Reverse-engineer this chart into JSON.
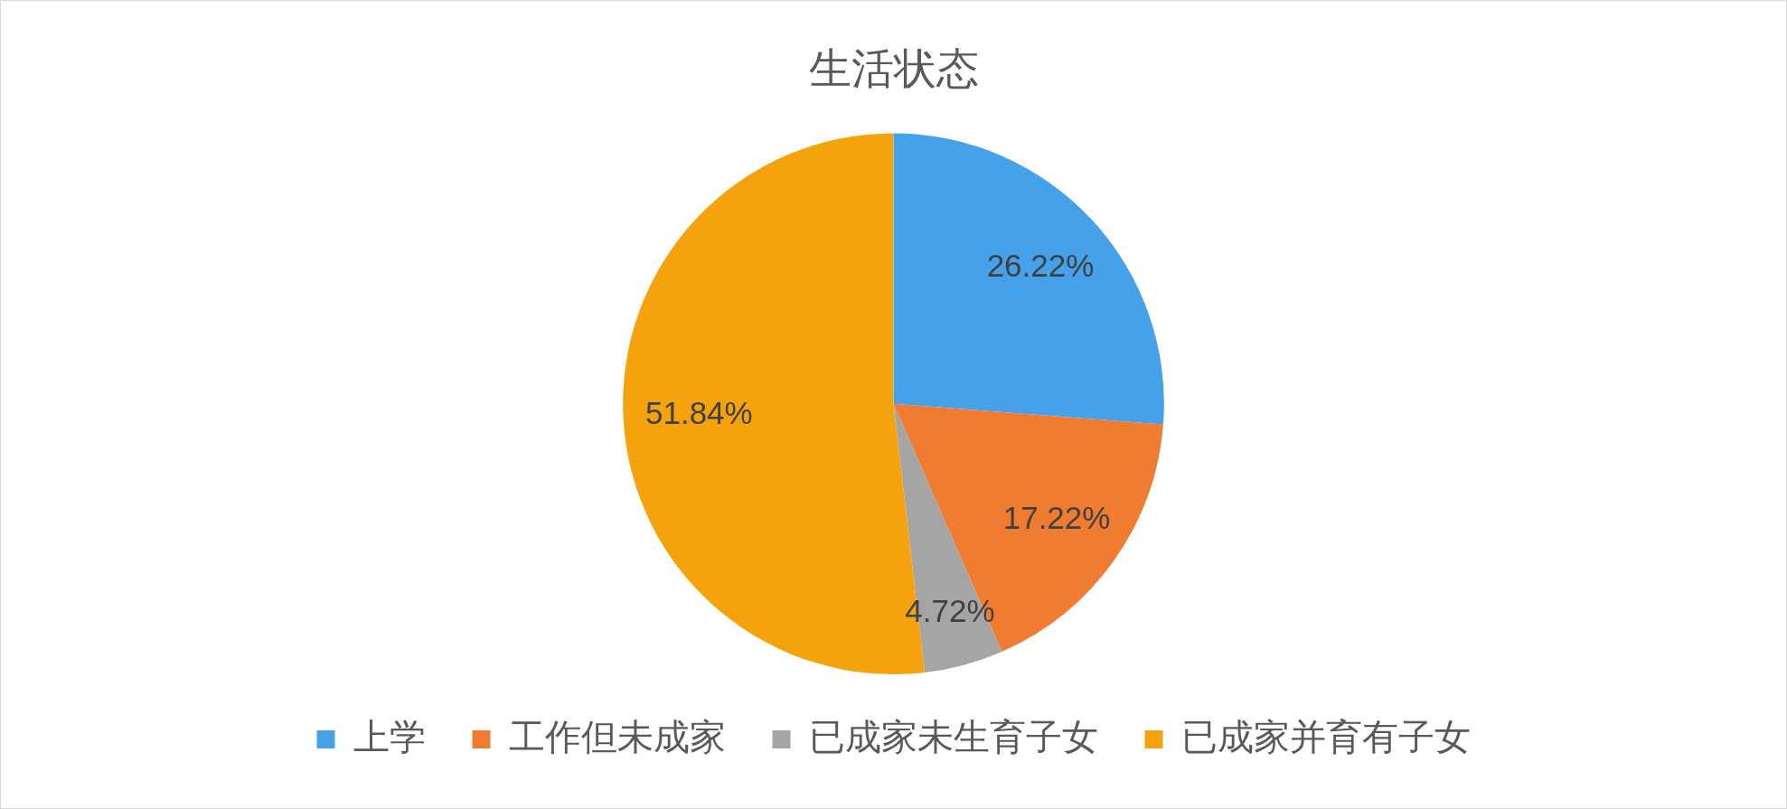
{
  "chart_data": {
    "type": "pie",
    "title": "生活状态",
    "categories": [
      "上学",
      "工作但未成家",
      "已成家未生育子女",
      "已成家并育有子女"
    ],
    "values": [
      26.22,
      17.22,
      4.72,
      51.84
    ],
    "value_labels": [
      "26.22%",
      "17.22%",
      "4.72%",
      "51.84%"
    ],
    "colors": [
      "#44a1ea",
      "#f07c32",
      "#a5a5a5",
      "#f5a30c"
    ],
    "legend": "bottom"
  }
}
